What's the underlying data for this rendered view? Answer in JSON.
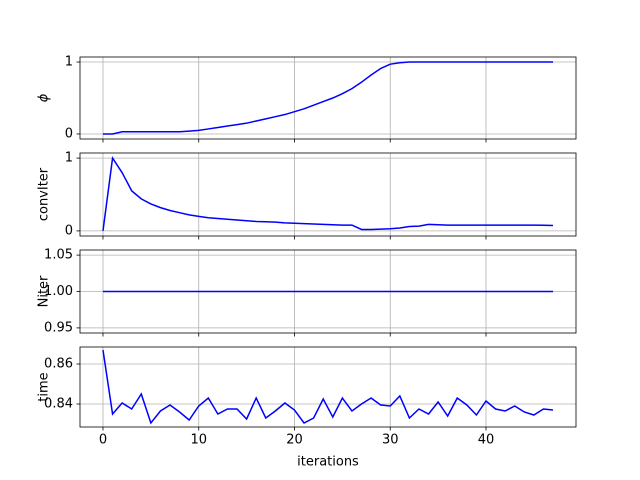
{
  "chart_data": [
    {
      "type": "line",
      "ylabel": "ϕ",
      "color": "#0000ff",
      "grid": true,
      "x": [
        0,
        1,
        2,
        3,
        4,
        5,
        6,
        7,
        8,
        9,
        10,
        11,
        12,
        13,
        14,
        15,
        16,
        17,
        18,
        19,
        20,
        21,
        22,
        23,
        24,
        25,
        26,
        27,
        28,
        29,
        30,
        31,
        32,
        33,
        34,
        35,
        36,
        37,
        38,
        39,
        40,
        41,
        42,
        43,
        44,
        45,
        46,
        47
      ],
      "values": [
        0,
        0,
        0.03,
        0.03,
        0.03,
        0.03,
        0.03,
        0.03,
        0.03,
        0.04,
        0.05,
        0.07,
        0.09,
        0.11,
        0.13,
        0.15,
        0.18,
        0.21,
        0.24,
        0.27,
        0.31,
        0.35,
        0.4,
        0.45,
        0.5,
        0.56,
        0.63,
        0.72,
        0.82,
        0.91,
        0.97,
        0.99,
        1,
        1,
        1,
        1,
        1,
        1,
        1,
        1,
        1,
        1,
        1,
        1,
        1,
        1,
        1,
        1
      ],
      "xlim": [
        -2.4,
        49.4
      ],
      "xticks": [
        0,
        10,
        20,
        30,
        40
      ],
      "ylim": [
        -0.07,
        1.07
      ],
      "yticks": [
        0,
        1
      ]
    },
    {
      "type": "line",
      "ylabel": "convIter",
      "color": "#0000ff",
      "grid": true,
      "x": [
        0,
        1,
        2,
        3,
        4,
        5,
        6,
        7,
        8,
        9,
        10,
        11,
        12,
        13,
        14,
        15,
        16,
        17,
        18,
        19,
        20,
        21,
        22,
        23,
        24,
        25,
        26,
        27,
        28,
        29,
        30,
        31,
        32,
        33,
        34,
        35,
        36,
        37,
        38,
        39,
        40,
        41,
        42,
        43,
        44,
        45,
        46,
        47
      ],
      "values": [
        0,
        1,
        0.8,
        0.55,
        0.44,
        0.37,
        0.32,
        0.28,
        0.25,
        0.22,
        0.2,
        0.18,
        0.17,
        0.16,
        0.15,
        0.14,
        0.13,
        0.125,
        0.12,
        0.11,
        0.105,
        0.1,
        0.095,
        0.09,
        0.085,
        0.08,
        0.08,
        0.02,
        0.02,
        0.025,
        0.03,
        0.04,
        0.06,
        0.065,
        0.09,
        0.085,
        0.08,
        0.08,
        0.08,
        0.08,
        0.08,
        0.08,
        0.08,
        0.08,
        0.08,
        0.08,
        0.078,
        0.075
      ],
      "xlim": [
        -2.4,
        49.4
      ],
      "xticks": [
        0,
        10,
        20,
        30,
        40
      ],
      "ylim": [
        -0.07,
        1.07
      ],
      "yticks": [
        0,
        1
      ]
    },
    {
      "type": "line",
      "ylabel": "Niter",
      "color": "#0000ff",
      "grid": true,
      "x": [
        0,
        1,
        2,
        3,
        4,
        5,
        6,
        7,
        8,
        9,
        10,
        11,
        12,
        13,
        14,
        15,
        16,
        17,
        18,
        19,
        20,
        21,
        22,
        23,
        24,
        25,
        26,
        27,
        28,
        29,
        30,
        31,
        32,
        33,
        34,
        35,
        36,
        37,
        38,
        39,
        40,
        41,
        42,
        43,
        44,
        45,
        46,
        47
      ],
      "values": [
        1,
        1,
        1,
        1,
        1,
        1,
        1,
        1,
        1,
        1,
        1,
        1,
        1,
        1,
        1,
        1,
        1,
        1,
        1,
        1,
        1,
        1,
        1,
        1,
        1,
        1,
        1,
        1,
        1,
        1,
        1,
        1,
        1,
        1,
        1,
        1,
        1,
        1,
        1,
        1,
        1,
        1,
        1,
        1,
        1,
        1,
        1,
        1
      ],
      "xlim": [
        -2.4,
        49.4
      ],
      "xticks": [
        0,
        10,
        20,
        30,
        40
      ],
      "ylim": [
        0.943,
        1.057
      ],
      "yticks": [
        0.95,
        {
          "value": 1,
          "label": "1.00"
        },
        1.05
      ]
    },
    {
      "type": "line",
      "ylabel": "time",
      "xlabel": "iterations",
      "color": "#0000ff",
      "grid": true,
      "x": [
        0,
        1,
        2,
        3,
        4,
        5,
        6,
        7,
        8,
        9,
        10,
        11,
        12,
        13,
        14,
        15,
        16,
        17,
        18,
        19,
        20,
        21,
        22,
        23,
        24,
        25,
        26,
        27,
        28,
        29,
        30,
        31,
        32,
        33,
        34,
        35,
        36,
        37,
        38,
        39,
        40,
        41,
        42,
        43,
        44,
        45,
        46,
        47
      ],
      "values": [
        0.867,
        0.835,
        0.8405,
        0.8375,
        0.845,
        0.8305,
        0.8365,
        0.8395,
        0.836,
        0.832,
        0.839,
        0.843,
        0.835,
        0.8375,
        0.8375,
        0.8325,
        0.843,
        0.833,
        0.8365,
        0.8405,
        0.837,
        0.8305,
        0.833,
        0.8425,
        0.8335,
        0.843,
        0.8365,
        0.84,
        0.843,
        0.8395,
        0.839,
        0.844,
        0.833,
        0.8375,
        0.835,
        0.841,
        0.834,
        0.843,
        0.8395,
        0.8345,
        0.8415,
        0.8375,
        0.8365,
        0.839,
        0.836,
        0.8345,
        0.8375,
        0.837
      ],
      "xlim": [
        -2.4,
        49.4
      ],
      "xticks": [
        0,
        10,
        20,
        30,
        40
      ],
      "ylim": [
        0.8285,
        0.8685
      ],
      "yticks": [
        0.84,
        0.86
      ]
    }
  ]
}
